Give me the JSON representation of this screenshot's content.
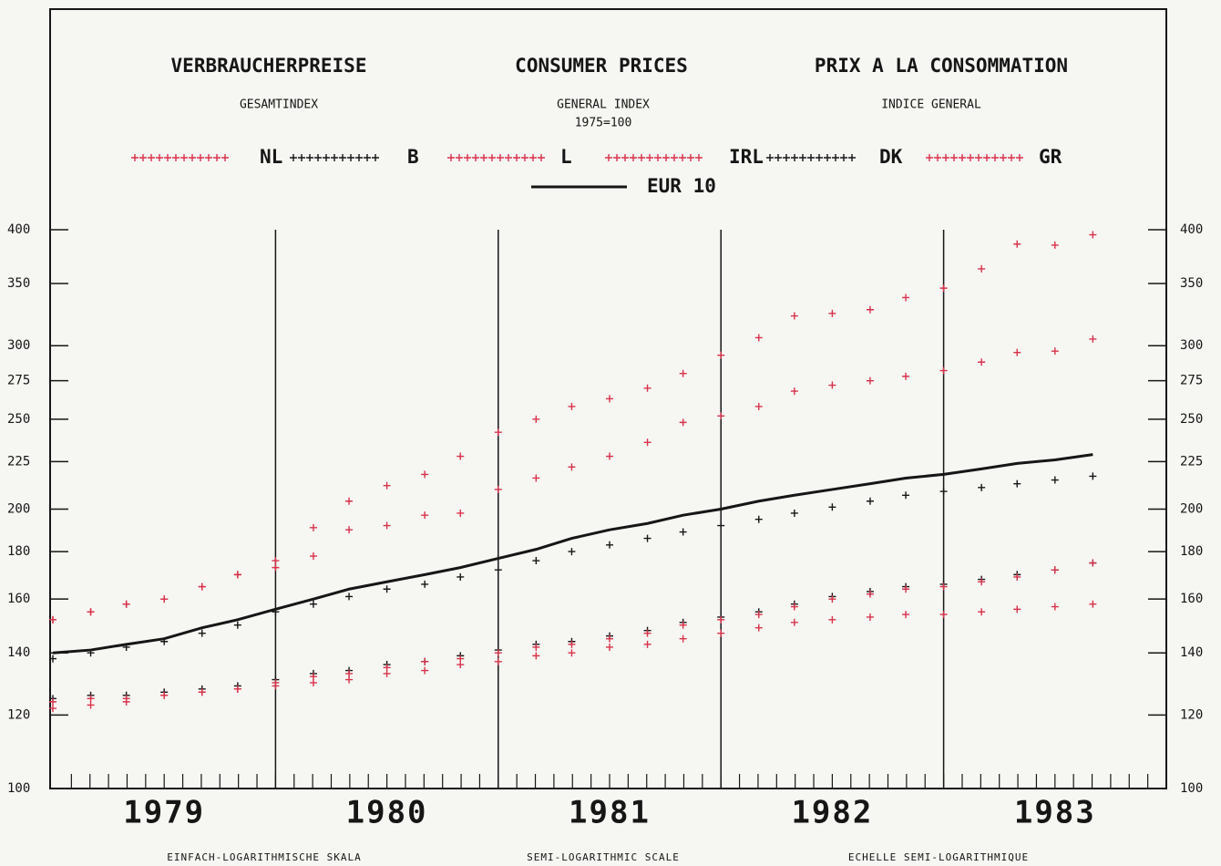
{
  "chart_data": {
    "type": "line",
    "titles": [
      "VERBRAUCHERPREISE",
      "CONSUMER PRICES",
      "PRIX A LA CONSOMMATION"
    ],
    "subtitles": [
      "GESAMTINDEX",
      "GENERAL INDEX",
      "INDICE GENERAL"
    ],
    "base_note": "1975=100",
    "scale_notes": [
      "EINFACH-LOGARITHMISCHE SKALA",
      "SEMI-LOGARITHMIC SCALE",
      "ECHELLE SEMI-LOGARITHMIQUE"
    ],
    "log_scale": true,
    "xlim": [
      1979,
      1984
    ],
    "xticks": [
      {
        "value": 1979.5,
        "label": "1979"
      },
      {
        "value": 1980.5,
        "label": "1980"
      },
      {
        "value": 1981.5,
        "label": "1981"
      },
      {
        "value": 1982.5,
        "label": "1982"
      },
      {
        "value": 1983.5,
        "label": "1983"
      }
    ],
    "vlines": [
      1980,
      1981,
      1982,
      1983
    ],
    "ylim": [
      100,
      400
    ],
    "yticks": [
      100,
      120,
      140,
      160,
      180,
      200,
      225,
      250,
      275,
      300,
      350,
      400
    ],
    "x": [
      1979.0,
      1979.17,
      1979.33,
      1979.5,
      1979.67,
      1979.83,
      1980.0,
      1980.17,
      1980.33,
      1980.5,
      1980.67,
      1980.83,
      1981.0,
      1981.17,
      1981.33,
      1981.5,
      1981.67,
      1981.83,
      1982.0,
      1982.17,
      1982.33,
      1982.5,
      1982.67,
      1982.83,
      1983.0,
      1983.17,
      1983.33,
      1983.5,
      1983.67
    ],
    "series": [
      {
        "name": "NL",
        "color": "#d8324a",
        "marker": "cross",
        "values": [
          122,
          123,
          124,
          126,
          127,
          128,
          129,
          130,
          131,
          133,
          134,
          136,
          137,
          139,
          140,
          142,
          143,
          145,
          147,
          149,
          151,
          152,
          153,
          154,
          154,
          155,
          156,
          157,
          158
        ]
      },
      {
        "name": "B",
        "color": "#161616",
        "marker": "cross",
        "values": [
          125,
          126,
          126,
          127,
          128,
          129,
          131,
          133,
          134,
          136,
          137,
          139,
          141,
          143,
          144,
          146,
          148,
          151,
          153,
          155,
          158,
          161,
          163,
          165,
          166,
          168,
          170,
          172,
          175
        ]
      },
      {
        "name": "L",
        "color": "#d8324a",
        "marker": "cross",
        "values": [
          124,
          125,
          125,
          126,
          127,
          128,
          130,
          132,
          133,
          135,
          137,
          138,
          140,
          142,
          143,
          145,
          147,
          150,
          152,
          154,
          157,
          160,
          162,
          164,
          165,
          167,
          169,
          172,
          175
        ]
      },
      {
        "name": "IRL",
        "color": "#d8324a",
        "marker": "cross",
        "values": [
          152,
          155,
          158,
          160,
          165,
          170,
          176,
          178,
          190,
          192,
          197,
          198,
          210,
          216,
          222,
          228,
          236,
          248,
          252,
          258,
          268,
          272,
          275,
          278,
          282,
          288,
          295,
          296,
          305
        ]
      },
      {
        "name": "DK",
        "color": "#161616",
        "marker": "cross",
        "values": [
          138,
          140,
          142,
          144,
          147,
          150,
          155,
          158,
          161,
          164,
          166,
          169,
          172,
          176,
          180,
          183,
          186,
          189,
          192,
          195,
          198,
          201,
          204,
          207,
          209,
          211,
          213,
          215,
          217
        ]
      },
      {
        "name": "GR",
        "color": "#d8324a",
        "marker": "cross",
        "values": [
          152,
          155,
          158,
          160,
          165,
          170,
          173,
          191,
          204,
          212,
          218,
          228,
          242,
          250,
          258,
          263,
          270,
          280,
          293,
          306,
          323,
          325,
          328,
          338,
          346,
          363,
          386,
          385,
          395
        ]
      },
      {
        "name": "EUR 10",
        "color": "#161616",
        "marker": "line",
        "values": [
          140,
          141,
          143,
          145,
          149,
          152,
          156,
          160,
          164,
          167,
          170,
          173,
          177,
          181,
          186,
          190,
          193,
          197,
          200,
          204,
          207,
          210,
          213,
          216,
          218,
          221,
          224,
          226,
          229
        ]
      }
    ]
  }
}
